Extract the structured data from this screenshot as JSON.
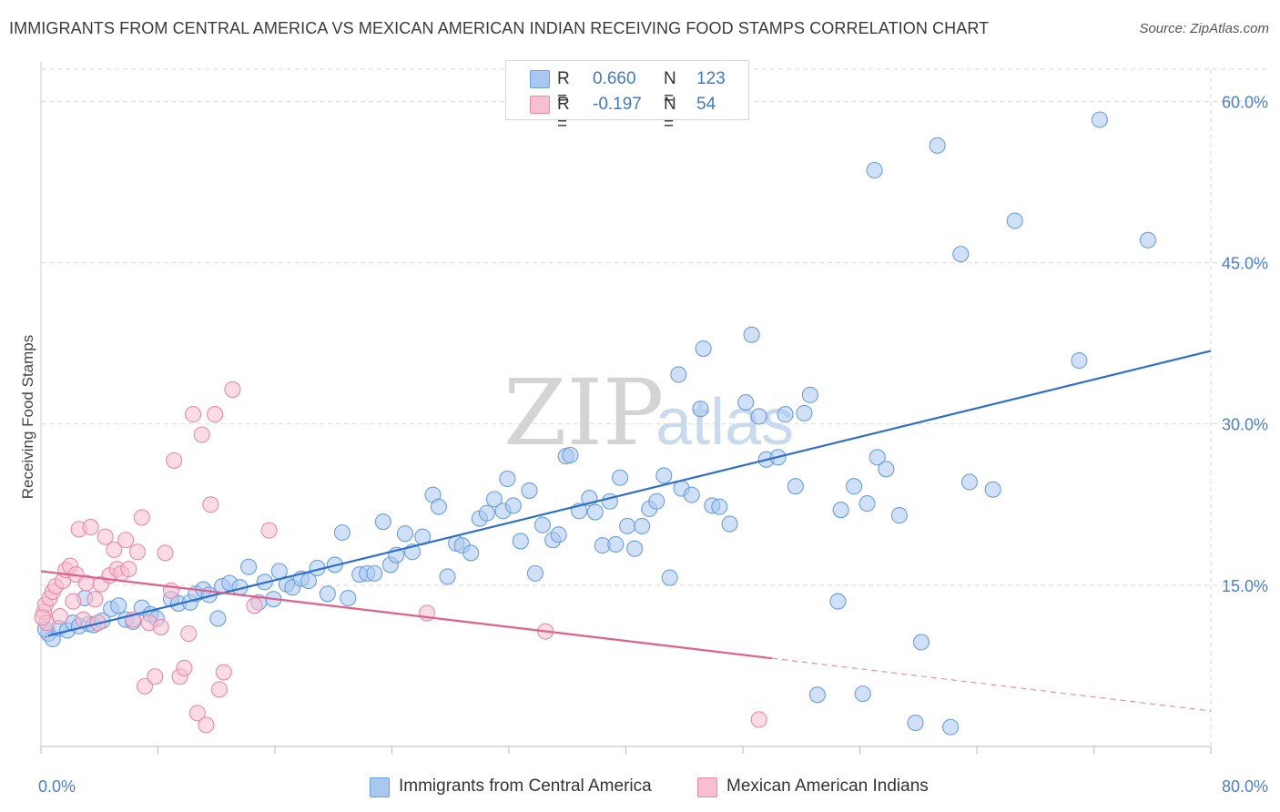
{
  "title": "IMMIGRANTS FROM CENTRAL AMERICA VS MEXICAN AMERICAN INDIAN RECEIVING FOOD STAMPS CORRELATION CHART",
  "source": "Source: ZipAtlas.com",
  "watermark": {
    "zip": "ZIP",
    "atlas": "atlas"
  },
  "legend": {
    "series1": {
      "r_label": "R =",
      "r_value": "0.660",
      "n_label": "N =",
      "n_value": "123"
    },
    "series2": {
      "r_label": "R =",
      "r_value": "-0.197",
      "n_label": "N =",
      "n_value": "54"
    }
  },
  "colors": {
    "blue_fill": "#a9c8f0",
    "blue_stroke": "#6a9fe0",
    "blue_line": "#2f6fcc",
    "pink_fill": "#f7bfd0",
    "pink_stroke": "#e98aa8",
    "pink_line": "#e0608c",
    "grid": "#d9d9d9",
    "axis_text": "#4a7fd0"
  },
  "chart_data": {
    "type": "scatter",
    "title": "IMMIGRANTS FROM CENTRAL AMERICA VS MEXICAN AMERICAN INDIAN RECEIVING FOOD STAMPS CORRELATION CHART",
    "xlabel": "",
    "ylabel": "Receiving Food Stamps",
    "xlim": [
      0,
      80
    ],
    "ylim": [
      0,
      63
    ],
    "x_tick_labels": [
      "0.0%",
      "80.0%"
    ],
    "y_ticks": [
      15,
      30,
      45,
      60
    ],
    "y_tick_labels": [
      "15.0%",
      "30.0%",
      "45.0%",
      "60.0%"
    ],
    "grid": true,
    "legend_position": "top-center",
    "series": [
      {
        "name": "Immigrants from Central America",
        "color": "#a9c8f0",
        "trend": {
          "x": [
            0.5,
            80
          ],
          "y": [
            10.3,
            36.8
          ]
        },
        "points": [
          [
            0.5,
            10.5
          ],
          [
            0.8,
            10.0
          ],
          [
            1.2,
            11.0
          ],
          [
            1.8,
            10.8
          ],
          [
            2.2,
            11.5
          ],
          [
            2.6,
            11.2
          ],
          [
            3.0,
            13.8
          ],
          [
            3.3,
            11.4
          ],
          [
            3.6,
            11.3
          ],
          [
            4.2,
            11.7
          ],
          [
            4.8,
            12.8
          ],
          [
            5.3,
            13.1
          ],
          [
            5.8,
            11.8
          ],
          [
            6.3,
            11.6
          ],
          [
            6.9,
            12.9
          ],
          [
            7.5,
            12.3
          ],
          [
            7.9,
            11.9
          ],
          [
            8.9,
            13.7
          ],
          [
            9.4,
            13.3
          ],
          [
            10.2,
            13.4
          ],
          [
            10.6,
            14.2
          ],
          [
            11.1,
            14.6
          ],
          [
            11.5,
            14.1
          ],
          [
            12.1,
            11.9
          ],
          [
            12.4,
            14.9
          ],
          [
            12.9,
            15.2
          ],
          [
            13.6,
            14.8
          ],
          [
            14.2,
            16.7
          ],
          [
            14.9,
            13.4
          ],
          [
            15.3,
            15.3
          ],
          [
            15.9,
            13.7
          ],
          [
            16.3,
            16.3
          ],
          [
            16.8,
            15.1
          ],
          [
            17.2,
            14.8
          ],
          [
            17.8,
            15.6
          ],
          [
            18.3,
            15.4
          ],
          [
            18.9,
            16.6
          ],
          [
            19.6,
            14.2
          ],
          [
            20.1,
            16.9
          ],
          [
            20.6,
            19.9
          ],
          [
            21.0,
            13.8
          ],
          [
            21.8,
            16.0
          ],
          [
            22.3,
            16.1
          ],
          [
            22.8,
            16.1
          ],
          [
            23.4,
            20.9
          ],
          [
            23.9,
            16.9
          ],
          [
            24.3,
            17.8
          ],
          [
            24.9,
            19.8
          ],
          [
            25.4,
            18.1
          ],
          [
            26.1,
            19.5
          ],
          [
            26.8,
            23.4
          ],
          [
            27.2,
            22.3
          ],
          [
            27.8,
            15.8
          ],
          [
            28.4,
            18.9
          ],
          [
            28.8,
            18.7
          ],
          [
            29.4,
            18.0
          ],
          [
            30.0,
            21.2
          ],
          [
            30.5,
            21.7
          ],
          [
            31.0,
            23.0
          ],
          [
            31.6,
            21.9
          ],
          [
            31.9,
            24.9
          ],
          [
            32.3,
            22.4
          ],
          [
            32.8,
            19.1
          ],
          [
            33.4,
            23.8
          ],
          [
            33.8,
            16.1
          ],
          [
            34.3,
            20.6
          ],
          [
            35.0,
            19.2
          ],
          [
            35.4,
            19.7
          ],
          [
            35.9,
            27.0
          ],
          [
            36.2,
            27.1
          ],
          [
            36.8,
            21.9
          ],
          [
            37.5,
            23.1
          ],
          [
            37.9,
            21.8
          ],
          [
            38.4,
            18.7
          ],
          [
            38.9,
            22.8
          ],
          [
            39.3,
            18.8
          ],
          [
            39.6,
            25.0
          ],
          [
            40.1,
            20.5
          ],
          [
            40.6,
            18.4
          ],
          [
            41.1,
            20.5
          ],
          [
            41.6,
            22.1
          ],
          [
            42.1,
            22.8
          ],
          [
            42.6,
            25.2
          ],
          [
            43.0,
            15.7
          ],
          [
            43.6,
            34.6
          ],
          [
            43.8,
            24.0
          ],
          [
            44.5,
            23.4
          ],
          [
            45.1,
            31.4
          ],
          [
            45.3,
            37.0
          ],
          [
            45.9,
            22.4
          ],
          [
            46.4,
            22.3
          ],
          [
            47.1,
            20.7
          ],
          [
            48.2,
            32.0
          ],
          [
            48.6,
            38.3
          ],
          [
            49.1,
            30.7
          ],
          [
            49.6,
            26.7
          ],
          [
            50.4,
            26.9
          ],
          [
            50.9,
            30.9
          ],
          [
            51.6,
            24.2
          ],
          [
            52.2,
            31.0
          ],
          [
            52.6,
            32.7
          ],
          [
            54.5,
            13.5
          ],
          [
            54.7,
            22.0
          ],
          [
            55.6,
            24.2
          ],
          [
            56.5,
            22.6
          ],
          [
            57.0,
            53.6
          ],
          [
            57.2,
            26.9
          ],
          [
            57.8,
            25.8
          ],
          [
            58.7,
            21.5
          ],
          [
            60.2,
            9.7
          ],
          [
            61.3,
            55.9
          ],
          [
            62.9,
            45.8
          ],
          [
            63.5,
            24.6
          ],
          [
            65.1,
            23.9
          ],
          [
            66.6,
            48.9
          ],
          [
            71.0,
            35.9
          ],
          [
            72.4,
            58.3
          ],
          [
            75.7,
            47.1
          ],
          [
            56.2,
            4.9
          ],
          [
            59.8,
            2.2
          ],
          [
            62.2,
            1.8
          ],
          [
            53.1,
            4.8
          ],
          [
            0.3,
            10.9
          ]
        ]
      },
      {
        "name": "Mexican American Indians",
        "color": "#f7bfd0",
        "trend": {
          "x": [
            0.0,
            50.0
          ],
          "y": [
            16.3,
            8.2
          ]
        },
        "trend_extension": {
          "x": [
            50.0,
            80.0
          ],
          "y": [
            8.2,
            3.3
          ]
        },
        "points": [
          [
            0.2,
            12.5
          ],
          [
            0.3,
            13.2
          ],
          [
            0.4,
            11.5
          ],
          [
            0.6,
            13.8
          ],
          [
            0.8,
            14.4
          ],
          [
            1.0,
            14.9
          ],
          [
            1.3,
            12.1
          ],
          [
            1.5,
            15.4
          ],
          [
            1.7,
            16.4
          ],
          [
            2.0,
            16.8
          ],
          [
            2.2,
            13.5
          ],
          [
            2.4,
            16.0
          ],
          [
            2.6,
            20.2
          ],
          [
            2.9,
            11.8
          ],
          [
            3.1,
            15.2
          ],
          [
            3.4,
            20.4
          ],
          [
            3.7,
            13.7
          ],
          [
            3.9,
            11.5
          ],
          [
            4.1,
            15.1
          ],
          [
            4.4,
            19.5
          ],
          [
            4.7,
            15.9
          ],
          [
            5.0,
            18.3
          ],
          [
            5.2,
            16.5
          ],
          [
            5.5,
            16.1
          ],
          [
            5.8,
            19.2
          ],
          [
            6.0,
            16.5
          ],
          [
            6.3,
            11.8
          ],
          [
            6.6,
            18.1
          ],
          [
            6.9,
            21.3
          ],
          [
            7.1,
            5.6
          ],
          [
            7.4,
            11.5
          ],
          [
            7.8,
            6.5
          ],
          [
            8.2,
            11.1
          ],
          [
            8.5,
            18.0
          ],
          [
            8.9,
            14.5
          ],
          [
            9.1,
            26.6
          ],
          [
            9.5,
            6.5
          ],
          [
            9.8,
            7.3
          ],
          [
            10.1,
            10.5
          ],
          [
            10.4,
            30.9
          ],
          [
            10.7,
            3.1
          ],
          [
            11.0,
            29.0
          ],
          [
            11.3,
            2.0
          ],
          [
            11.6,
            22.5
          ],
          [
            11.9,
            30.9
          ],
          [
            12.2,
            5.3
          ],
          [
            12.5,
            6.9
          ],
          [
            13.1,
            33.2
          ],
          [
            14.6,
            13.1
          ],
          [
            15.6,
            20.1
          ],
          [
            26.4,
            12.4
          ],
          [
            34.5,
            10.7
          ],
          [
            49.1,
            2.5
          ],
          [
            0.1,
            12.0
          ]
        ]
      }
    ]
  }
}
